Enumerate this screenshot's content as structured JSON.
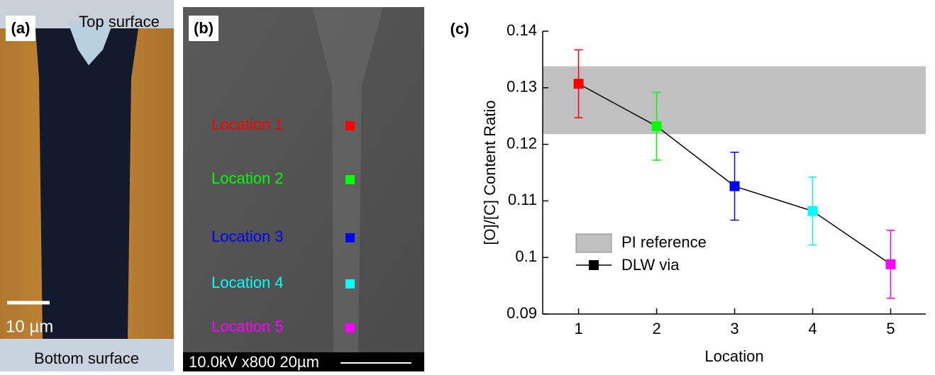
{
  "panel_a": {
    "label": "(a)",
    "top": "Top surface",
    "scale": "10 µm",
    "bottom": "Bottom surface"
  },
  "panel_b": {
    "label": "(b)",
    "info": "10.0kV  x800  20µm",
    "locations": [
      {
        "text": "Location 1",
        "color": "#ff0000"
      },
      {
        "text": "Location 2",
        "color": "#00ff00"
      },
      {
        "text": "Location 3",
        "color": "#0000ff"
      },
      {
        "text": "Location 4",
        "color": "#00ffff"
      },
      {
        "text": "Location 5",
        "color": "#ff00ff"
      }
    ]
  },
  "chart_data": {
    "type": "line",
    "panel_label": "(c)",
    "x_label": "Location",
    "y_label": "[O]/[C] Content Ratio",
    "x": [
      1,
      2,
      3,
      4,
      5
    ],
    "xlim": [
      0.54,
      5.45
    ],
    "xticks": [
      1,
      2,
      3,
      4,
      5
    ],
    "ylim": [
      0.09,
      0.14
    ],
    "yticks": [
      0.09,
      0.1,
      0.11,
      0.12,
      0.13,
      0.14
    ],
    "bands": [
      {
        "name": "PI reference",
        "range": [
          0.1218,
          0.1338
        ],
        "color": "#c0c0c0"
      }
    ],
    "series": [
      {
        "name": "DLW via",
        "color": "#000000",
        "point_colors": [
          "#ff0000",
          "#00ff00",
          "#0000ff",
          "#00ffff",
          "#ff00ff"
        ],
        "values": [
          0.1307,
          0.1232,
          0.1126,
          0.1082,
          0.0988
        ],
        "errors": [
          0.006,
          0.006,
          0.006,
          0.006,
          0.006
        ]
      }
    ]
  }
}
